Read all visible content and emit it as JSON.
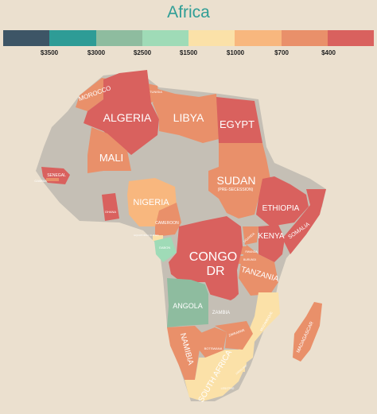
{
  "title": "Africa",
  "legend": {
    "segments": [
      {
        "color": "#3d5566"
      },
      {
        "color": "#2e9c96"
      },
      {
        "color": "#8ebc9f"
      },
      {
        "color": "#9fdbb7"
      },
      {
        "color": "#fbe1a8"
      },
      {
        "color": "#f8b77e"
      },
      {
        "color": "#e9906a"
      },
      {
        "color": "#d9615e"
      }
    ],
    "labels": [
      "$3500",
      "$3000",
      "$2500",
      "$1500",
      "$1000",
      "$700",
      "$400"
    ]
  },
  "colors": {
    "no_data": "#c5bfb5",
    "background": "#ebe0cf"
  },
  "countries": {
    "morocco": "MOROCCO",
    "tunisia": "TUNISIA",
    "algeria": "ALGERIA",
    "libya": "LIBYA",
    "egypt": "EGYPT",
    "mali": "MALI",
    "senegal": "SENEGAL",
    "gambia": "GAMBIA",
    "ghana": "GHANA",
    "nigeria": "NIGERIA",
    "cameroon": "CAMEROON",
    "equatorial_guinea": "EQUATORIAL GUINEA",
    "gabon": "GABON",
    "sudan": "SUDAN",
    "sudan_note": "(PRE-SECESSION)",
    "ethiopia": "ETHIOPIA",
    "somalia": "SOMALIA",
    "kenya": "KENYA",
    "uganda": "UGANDA",
    "rwanda": "RWANDA",
    "burundi": "BURUNDI",
    "congo_dr_1": "CONGO",
    "congo_dr_2": "DR",
    "tanzania": "TANZANIA",
    "angola": "ANGOLA",
    "zambia": "ZAMBIA",
    "mozambique": "MOZAMBIQUE",
    "namibia": "NAMIBIA",
    "botswana": "BOTSWANA",
    "zimbabwe": "ZIMBABWE",
    "south_africa": "SOUTH AFRICA",
    "swaziland": "SWAZILAND",
    "lesotho": "LESOTHO",
    "madagascar": "MADAGASCAR"
  }
}
